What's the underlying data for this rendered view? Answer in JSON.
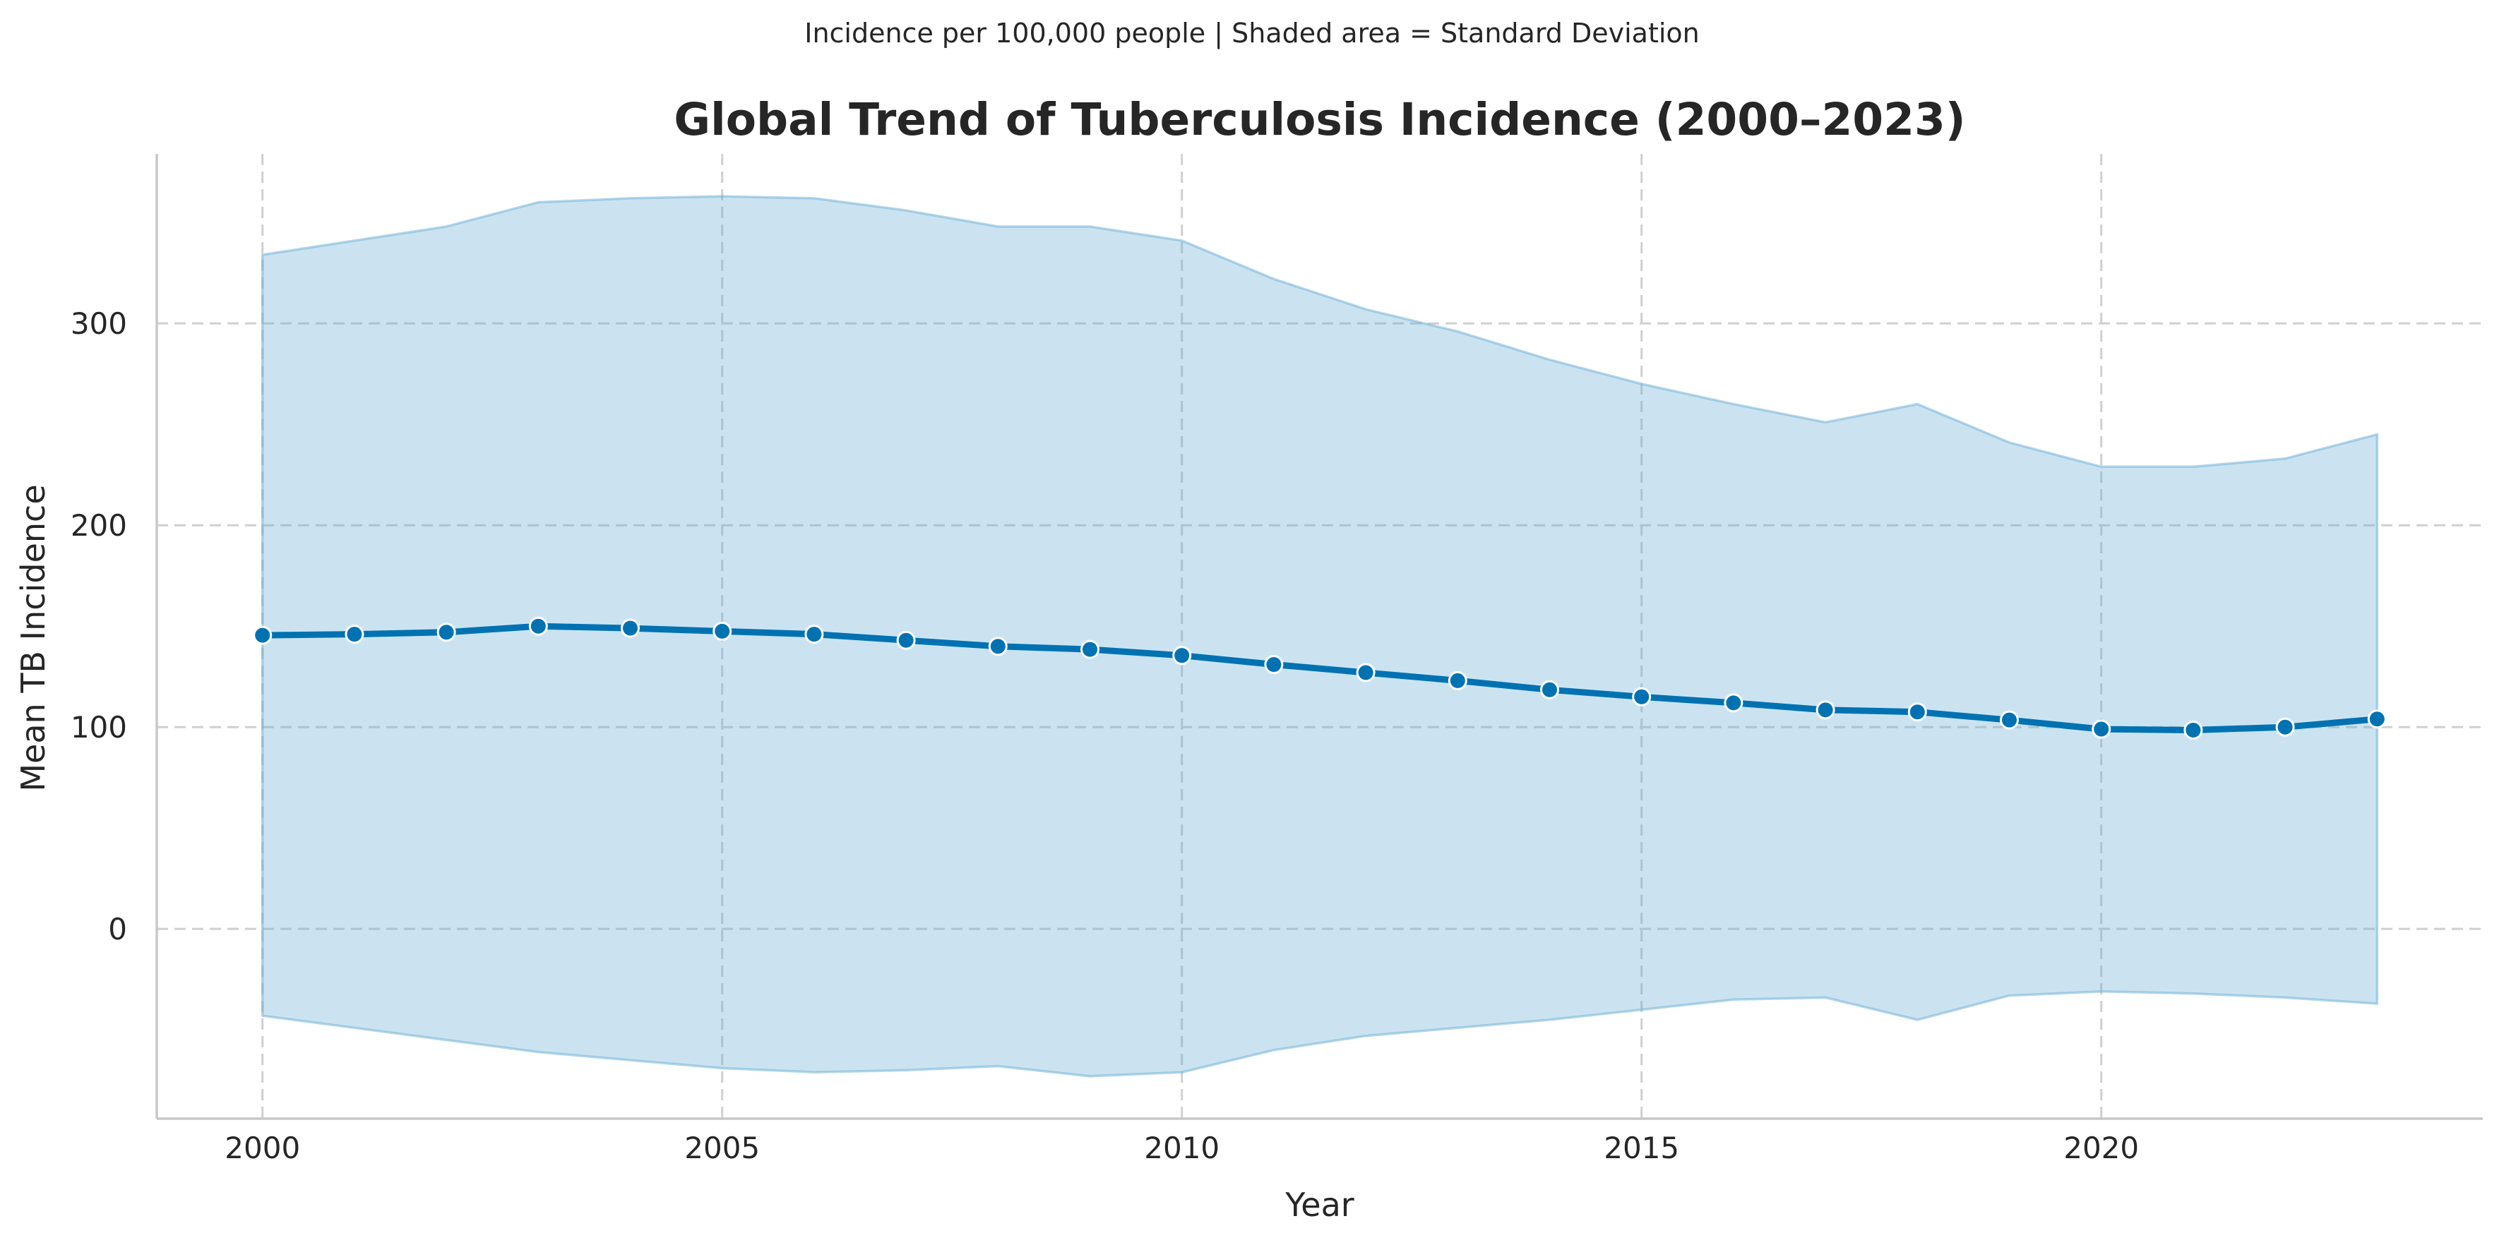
{
  "figure": {
    "suptitle": "Incidence per 100,000 people | Shaded area = Standard Deviation"
  },
  "chart_data": {
    "type": "line",
    "title": "Global Trend of Tuberculosis Incidence (2000–2023)",
    "xlabel": "Year",
    "ylabel": "Mean TB Incidence",
    "xlim": [
      1998.85,
      2024.15
    ],
    "ylim": [
      -94,
      384
    ],
    "x_ticks": [
      2000,
      2005,
      2010,
      2015,
      2020
    ],
    "y_ticks": [
      0,
      100,
      200,
      300
    ],
    "grid": true,
    "x": [
      2000,
      2001,
      2002,
      2003,
      2004,
      2005,
      2006,
      2007,
      2008,
      2009,
      2010,
      2011,
      2012,
      2013,
      2014,
      2015,
      2016,
      2017,
      2018,
      2019,
      2020,
      2021,
      2022,
      2023
    ],
    "series": [
      {
        "values": [
          145.5,
          146,
          147,
          150,
          149,
          147.5,
          146,
          143,
          140,
          138.5,
          135.5,
          131,
          127,
          123,
          118.5,
          115,
          112,
          108.5,
          107.5,
          103.5,
          99,
          98.5,
          100,
          104
        ],
        "color": "#0072b2"
      }
    ],
    "band": {
      "label": "Standard Deviation",
      "upper": [
        334,
        341,
        348,
        360,
        362,
        363,
        362,
        356,
        348,
        348,
        341,
        322,
        307,
        296,
        282,
        270,
        260,
        251,
        260,
        241,
        229,
        229,
        233,
        245
      ],
      "lower": [
        -43,
        -49,
        -55,
        -61,
        -65,
        -69,
        -71,
        -70,
        -68,
        -73,
        -71,
        -60,
        -53,
        -49,
        -45,
        -40,
        -35,
        -34,
        -45,
        -33,
        -31,
        -32,
        -34,
        -37
      ],
      "color": "#6baed6"
    }
  }
}
